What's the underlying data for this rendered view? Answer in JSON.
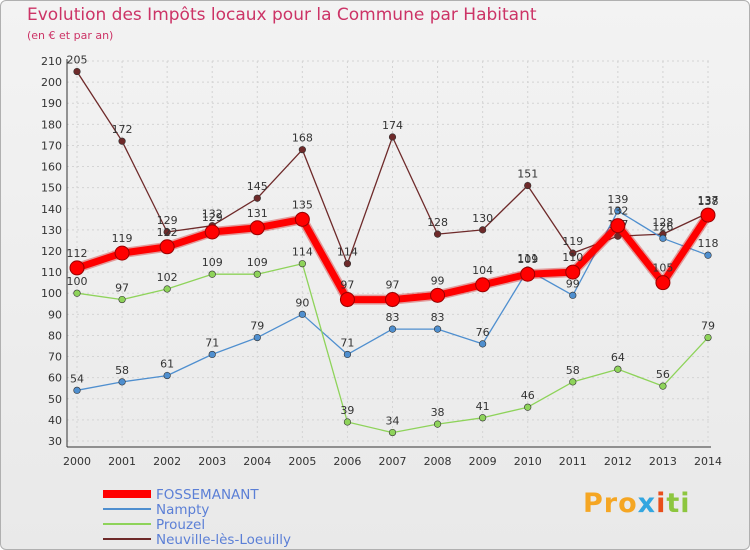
{
  "chart_data": {
    "type": "line",
    "title": "Evolution des Impôts locaux pour la Commune par Habitant",
    "subtitle": "(en € et par an)",
    "xlabel": "",
    "ylabel": "",
    "ylim": [
      30,
      210
    ],
    "y_ticks": [
      30,
      40,
      50,
      60,
      70,
      80,
      90,
      100,
      110,
      120,
      130,
      140,
      150,
      160,
      170,
      180,
      190,
      200,
      210
    ],
    "grid": true,
    "legend_position": "bottom-left",
    "categories": [
      "2000",
      "2001",
      "2002",
      "2003",
      "2004",
      "2005",
      "2006",
      "2007",
      "2008",
      "2009",
      "2010",
      "2011",
      "2012",
      "2013",
      "2014"
    ],
    "series": [
      {
        "name": "Neuville-lès-Loeuilly",
        "color": "#6e2a2a",
        "values": [
          205,
          172,
          129,
          132,
          145,
          168,
          114,
          174,
          128,
          130,
          151,
          119,
          127,
          128,
          138
        ],
        "labels": [
          "205",
          "172",
          "129",
          "132",
          "145",
          "168",
          "114",
          "174",
          "128",
          "130",
          "151",
          "119",
          "127",
          "128",
          "138"
        ]
      },
      {
        "name": "Nampty",
        "color": "#4f8fcf",
        "values": [
          54,
          58,
          61,
          71,
          79,
          90,
          71,
          83,
          83,
          76,
          111,
          99,
          139,
          126,
          118
        ],
        "labels": [
          "54",
          "58",
          "61",
          "71",
          "79",
          "90",
          "71",
          "83",
          "83",
          "76",
          "111",
          "99",
          "139",
          "126",
          "118"
        ]
      },
      {
        "name": "Prouzel",
        "color": "#8ed35a",
        "values": [
          100,
          97,
          102,
          109,
          109,
          114,
          39,
          34,
          38,
          41,
          46,
          58,
          64,
          56,
          79
        ],
        "labels": [
          "100",
          "97",
          "102",
          "109",
          "109",
          "114",
          "39",
          "34",
          "38",
          "41",
          "46",
          "58",
          "64",
          "56",
          "79"
        ]
      },
      {
        "name": "FOSSEMANANT",
        "color": "#ff0000",
        "values": [
          112,
          119,
          122,
          129,
          131,
          135,
          97,
          97,
          99,
          104,
          109,
          110,
          132,
          105,
          137
        ],
        "labels": [
          "112",
          "119",
          "122",
          "129",
          "131",
          "135",
          "97",
          "97",
          "99",
          "104",
          "109",
          "110",
          "132",
          "105",
          "137"
        ]
      }
    ],
    "legend": [
      "FOSSEMANANT",
      "Nampty",
      "Prouzel",
      "Neuville-lès-Loeuilly"
    ]
  },
  "branding": {
    "logo_text": "Proxiti"
  }
}
